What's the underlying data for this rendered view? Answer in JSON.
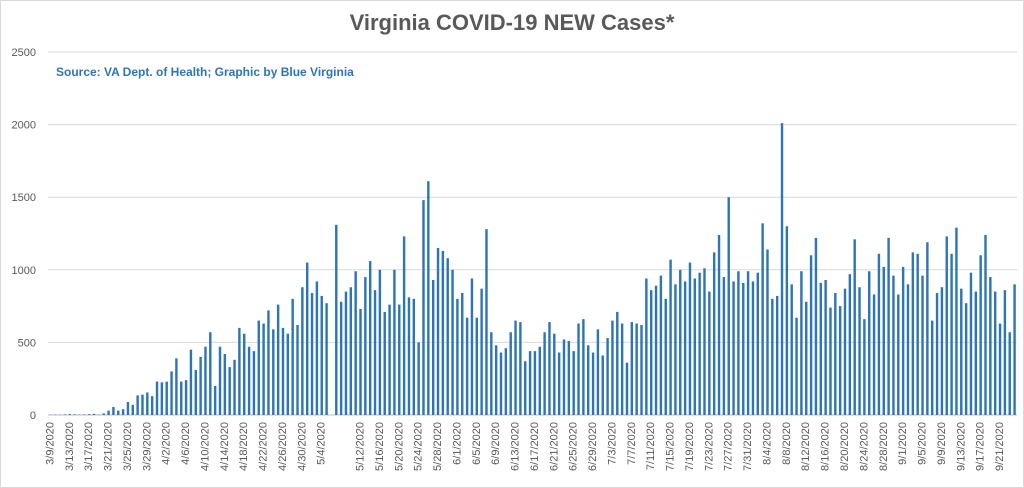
{
  "chart_data": {
    "type": "bar",
    "title": "Virginia COVID-19 NEW Cases*",
    "annotation": "Source: VA Dept. of Health; Graphic by Blue Virginia",
    "xlabel": "",
    "ylabel": "",
    "ylim": [
      0,
      2500
    ],
    "yticks": [
      0,
      500,
      1000,
      1500,
      2000,
      2500
    ],
    "grid": true,
    "legend": "none",
    "bar_color": "#2e75b6",
    "categories": [
      "3/9/2020",
      "3/10/2020",
      "3/11/2020",
      "3/12/2020",
      "3/13/2020",
      "3/14/2020",
      "3/15/2020",
      "3/16/2020",
      "3/17/2020",
      "3/18/2020",
      "3/19/2020",
      "3/20/2020",
      "3/21/2020",
      "3/22/2020",
      "3/23/2020",
      "3/24/2020",
      "3/25/2020",
      "3/26/2020",
      "3/27/2020",
      "3/28/2020",
      "3/29/2020",
      "3/30/2020",
      "3/31/2020",
      "4/1/2020",
      "4/2/2020",
      "4/3/2020",
      "4/4/2020",
      "4/5/2020",
      "4/6/2020",
      "4/7/2020",
      "4/8/2020",
      "4/9/2020",
      "4/10/2020",
      "4/11/2020",
      "4/12/2020",
      "4/13/2020",
      "4/14/2020",
      "4/15/2020",
      "4/16/2020",
      "4/17/2020",
      "4/18/2020",
      "4/19/2020",
      "4/20/2020",
      "4/21/2020",
      "4/22/2020",
      "4/23/2020",
      "4/24/2020",
      "4/25/2020",
      "4/26/2020",
      "4/27/2020",
      "4/28/2020",
      "4/29/2020",
      "4/30/2020",
      "5/1/2020",
      "5/2/2020",
      "5/3/2020",
      "5/4/2020",
      "5/5/2020",
      "5/6/2020",
      "5/7/2020",
      "5/8/2020",
      "5/9/2020",
      "5/10/2020",
      "5/11/2020",
      "5/12/2020",
      "5/13/2020",
      "5/14/2020",
      "5/15/2020",
      "5/16/2020",
      "5/17/2020",
      "5/18/2020",
      "5/19/2020",
      "5/20/2020",
      "5/21/2020",
      "5/22/2020",
      "5/23/2020",
      "5/24/2020",
      "5/25/2020",
      "5/26/2020",
      "5/27/2020",
      "5/28/2020",
      "5/29/2020",
      "5/30/2020",
      "5/31/2020",
      "6/1/2020",
      "6/2/2020",
      "6/3/2020",
      "6/4/2020",
      "6/5/2020",
      "6/6/2020",
      "6/7/2020",
      "6/8/2020",
      "6/9/2020",
      "6/10/2020",
      "6/11/2020",
      "6/12/2020",
      "6/13/2020",
      "6/14/2020",
      "6/15/2020",
      "6/16/2020",
      "6/17/2020",
      "6/18/2020",
      "6/19/2020",
      "6/20/2020",
      "6/21/2020",
      "6/22/2020",
      "6/23/2020",
      "6/24/2020",
      "6/25/2020",
      "6/26/2020",
      "6/27/2020",
      "6/28/2020",
      "6/29/2020",
      "6/30/2020",
      "7/1/2020",
      "7/2/2020",
      "7/3/2020",
      "7/4/2020",
      "7/5/2020",
      "7/6/2020",
      "7/7/2020",
      "7/8/2020",
      "7/9/2020",
      "7/10/2020",
      "7/11/2020",
      "7/12/2020",
      "7/13/2020",
      "7/14/2020",
      "7/15/2020",
      "7/16/2020",
      "7/17/2020",
      "7/18/2020",
      "7/19/2020",
      "7/20/2020",
      "7/21/2020",
      "7/22/2020",
      "7/23/2020",
      "7/24/2020",
      "7/25/2020",
      "7/26/2020",
      "7/27/2020",
      "7/28/2020",
      "7/29/2020",
      "7/30/2020",
      "7/31/2020",
      "8/1/2020",
      "8/2/2020",
      "8/3/2020",
      "8/4/2020",
      "8/5/2020",
      "8/6/2020",
      "8/7/2020",
      "8/8/2020",
      "8/9/2020",
      "8/10/2020",
      "8/11/2020",
      "8/12/2020",
      "8/13/2020",
      "8/14/2020",
      "8/15/2020",
      "8/16/2020",
      "8/17/2020",
      "8/18/2020",
      "8/19/2020",
      "8/20/2020",
      "8/21/2020",
      "8/22/2020",
      "8/23/2020",
      "8/24/2020",
      "8/25/2020",
      "8/26/2020",
      "8/27/2020",
      "8/28/2020",
      "8/29/2020",
      "8/30/2020",
      "8/31/2020",
      "9/1/2020",
      "9/2/2020",
      "9/3/2020",
      "9/4/2020",
      "9/5/2020",
      "9/6/2020",
      "9/7/2020",
      "9/8/2020",
      "9/9/2020",
      "9/10/2020",
      "9/11/2020",
      "9/12/2020",
      "9/13/2020",
      "9/14/2020",
      "9/15/2020",
      "9/16/2020",
      "9/17/2020",
      "9/18/2020",
      "9/19/2020",
      "9/20/2020",
      "9/21/2020",
      "9/22/2020",
      "9/23/2020",
      "9/24/2020"
    ],
    "values": [
      2,
      3,
      2,
      4,
      6,
      5,
      3,
      4,
      6,
      8,
      3,
      11,
      30,
      55,
      30,
      40,
      90,
      70,
      135,
      140,
      155,
      130,
      230,
      225,
      230,
      300,
      390,
      230,
      240,
      450,
      310,
      400,
      470,
      570,
      200,
      470,
      420,
      330,
      380,
      600,
      560,
      470,
      440,
      650,
      630,
      720,
      590,
      760,
      600,
      560,
      800,
      620,
      880,
      1050,
      840,
      920,
      820,
      770,
      0,
      1310,
      780,
      850,
      880,
      990,
      730,
      950,
      1060,
      860,
      1000,
      710,
      760,
      1000,
      760,
      1230,
      810,
      800,
      500,
      1480,
      1610,
      930,
      1150,
      1130,
      1080,
      1000,
      800,
      840,
      670,
      940,
      670,
      870,
      1280,
      570,
      480,
      430,
      460,
      570,
      650,
      640,
      370,
      440,
      440,
      470,
      570,
      640,
      560,
      430,
      520,
      510,
      440,
      630,
      660,
      480,
      430,
      590,
      410,
      530,
      650,
      710,
      630,
      360,
      640,
      630,
      620,
      940,
      860,
      890,
      960,
      800,
      1070,
      900,
      1000,
      920,
      1050,
      940,
      980,
      1010,
      850,
      1120,
      1240,
      950,
      1500,
      920,
      990,
      910,
      990,
      920,
      980,
      1320,
      1140,
      800,
      820,
      2010,
      1300,
      900,
      670,
      990,
      780,
      1100,
      1220,
      910,
      930,
      740,
      840,
      750,
      870,
      970,
      1210,
      880,
      660,
      990,
      830,
      1110,
      1020,
      1220,
      960,
      830,
      1020,
      900,
      1120,
      1110,
      960,
      1190,
      650,
      840,
      880,
      1230,
      1110,
      1290,
      870,
      770,
      980,
      850,
      1100,
      1240,
      950,
      850,
      630,
      860,
      570,
      900
    ],
    "tick_labels": [
      "3/9/2020",
      "3/13/2020",
      "3/17/2020",
      "3/21/2020",
      "3/25/2020",
      "3/29/2020",
      "4/2/2020",
      "4/6/2020",
      "4/10/2020",
      "4/14/2020",
      "4/18/2020",
      "4/22/2020",
      "4/26/2020",
      "4/30/2020",
      "5/4/2020",
      "5/12/2020",
      "5/16/2020",
      "5/20/2020",
      "5/24/2020",
      "5/28/2020",
      "6/1/2020",
      "6/5/2020",
      "6/9/2020",
      "6/13/2020",
      "6/17/2020",
      "6/21/2020",
      "6/25/2020",
      "6/29/2020",
      "7/3/2020",
      "7/7/2020",
      "7/11/2020",
      "7/15/2020",
      "7/19/2020",
      "7/23/2020",
      "7/27/2020",
      "7/31/2020",
      "8/4/2020",
      "8/8/2020",
      "8/12/2020",
      "8/16/2020",
      "8/20/2020",
      "8/24/2020",
      "8/28/2020",
      "9/1/2020",
      "9/5/2020",
      "9/9/2020",
      "9/13/2020",
      "9/17/2020",
      "9/21/2020"
    ]
  }
}
